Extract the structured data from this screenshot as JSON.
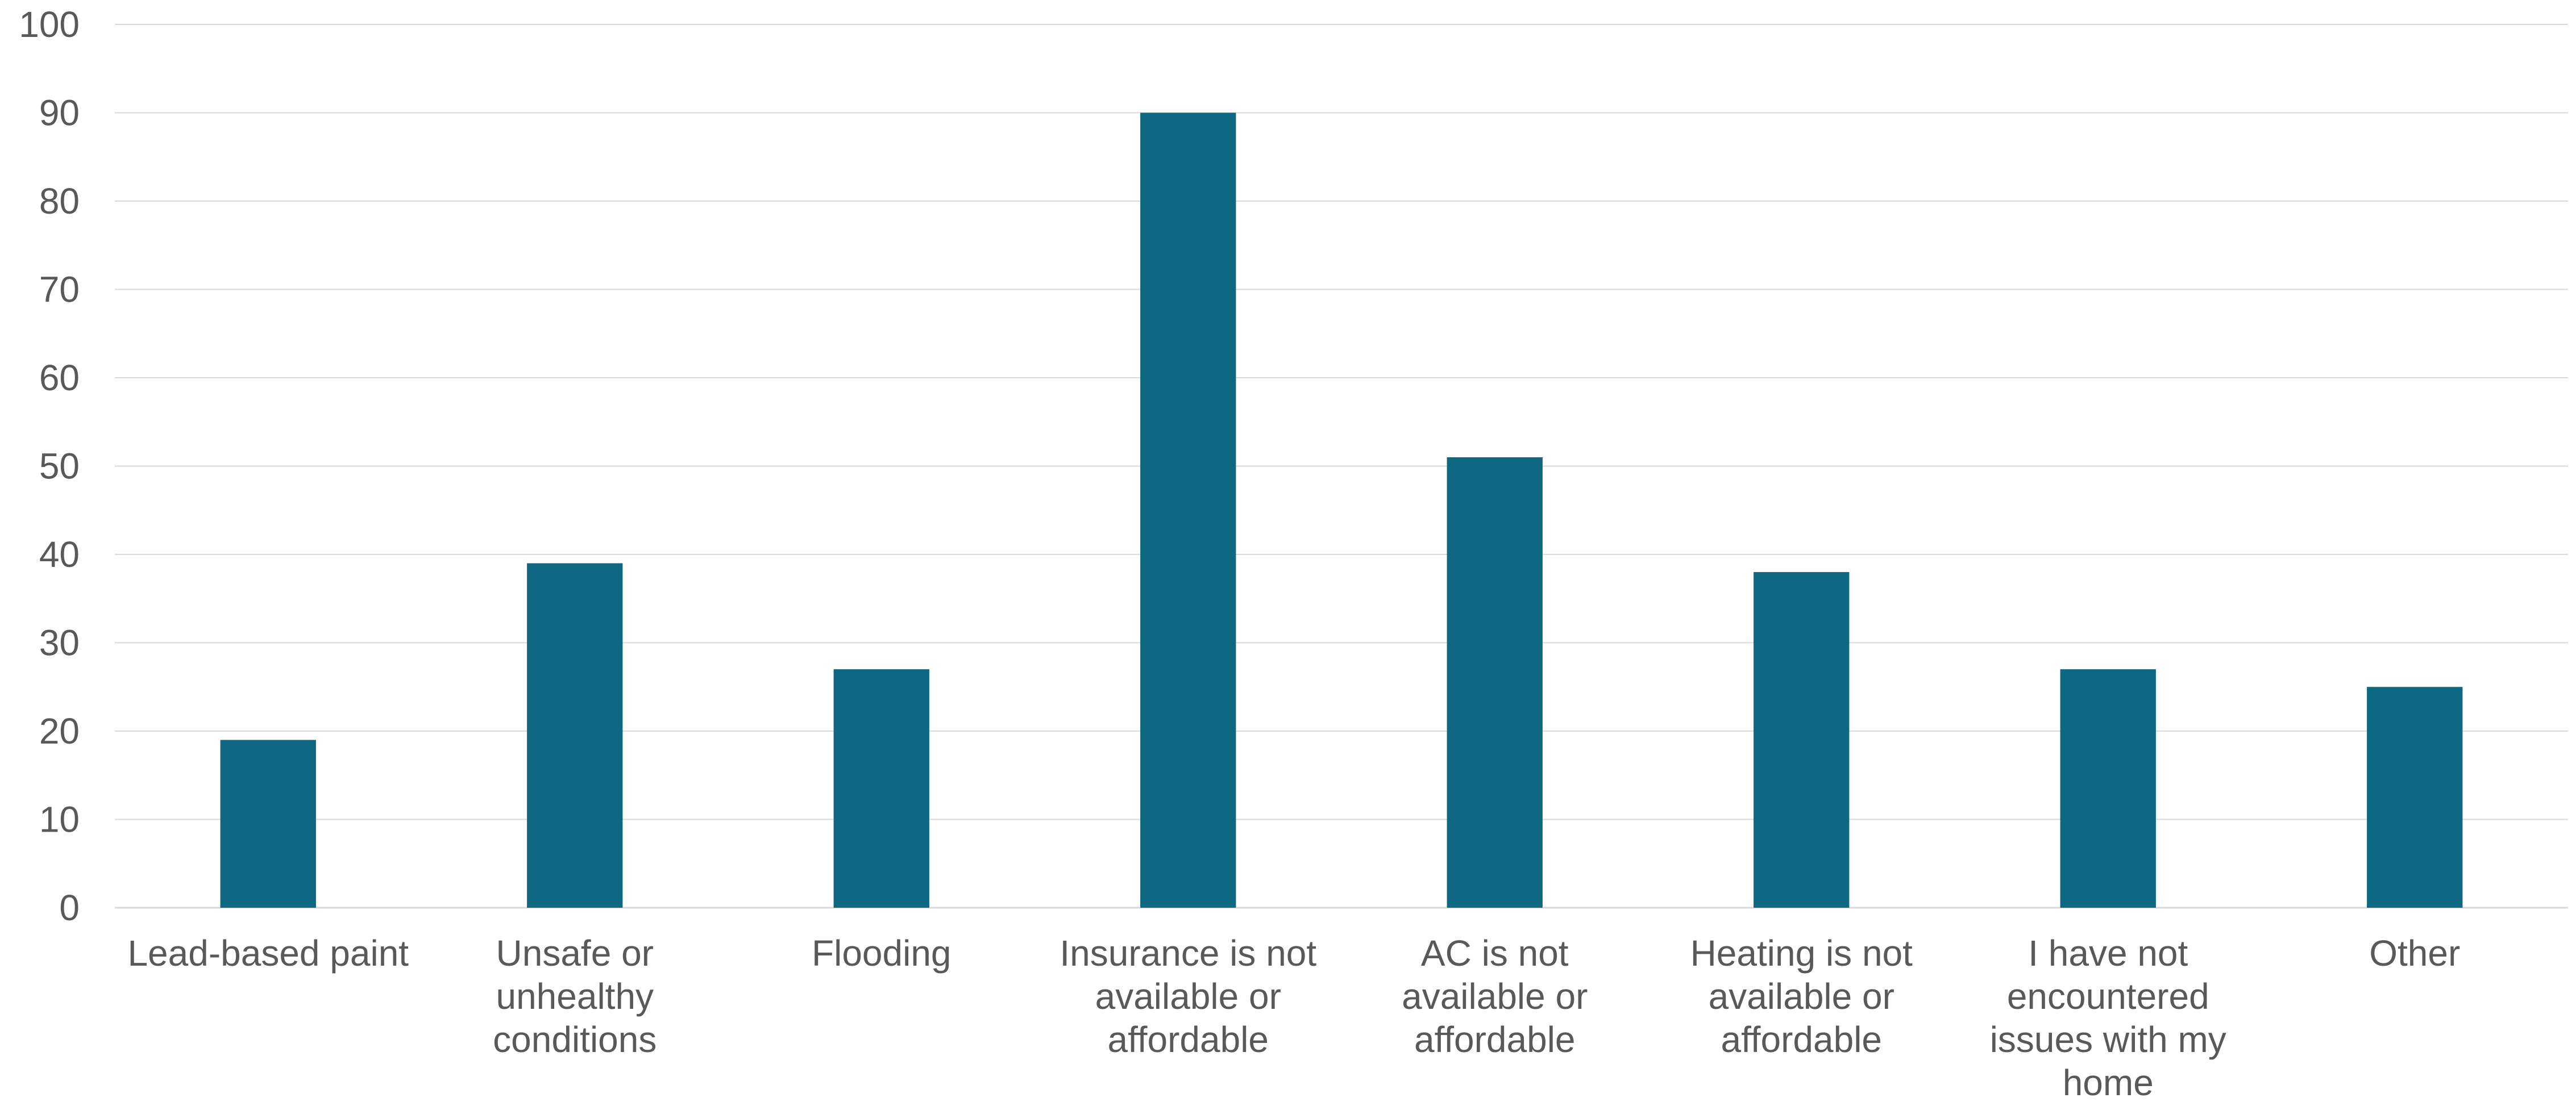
{
  "chart_data": {
    "type": "bar",
    "title": "",
    "xlabel": "",
    "ylabel": "",
    "ylim": [
      0,
      100
    ],
    "yticks": [
      0,
      10,
      20,
      30,
      40,
      50,
      60,
      70,
      80,
      90,
      100
    ],
    "grid": true,
    "legend": "none",
    "bar_color": "#0F6882",
    "grid_color": "#D9D9D9",
    "text_color": "#595959",
    "categories": [
      "Lead-based paint",
      "Unsafe or unhealthy conditions",
      "Flooding",
      "Insurance is not available or affordable",
      "AC is not available or affordable",
      "Heating is not available or affordable",
      "I have not encountered issues with my home",
      "Other"
    ],
    "category_lines": [
      [
        "Lead-based paint"
      ],
      [
        "Unsafe or",
        "unhealthy",
        "conditions"
      ],
      [
        "Flooding"
      ],
      [
        "Insurance is not",
        "available or",
        "affordable"
      ],
      [
        "AC is not",
        "available or",
        "affordable"
      ],
      [
        "Heating is not",
        "available or",
        "affordable"
      ],
      [
        "I have not",
        "encountered",
        "issues with my",
        "home"
      ],
      [
        "Other"
      ]
    ],
    "values": [
      19,
      39,
      27,
      90,
      51,
      38,
      27,
      25
    ]
  }
}
